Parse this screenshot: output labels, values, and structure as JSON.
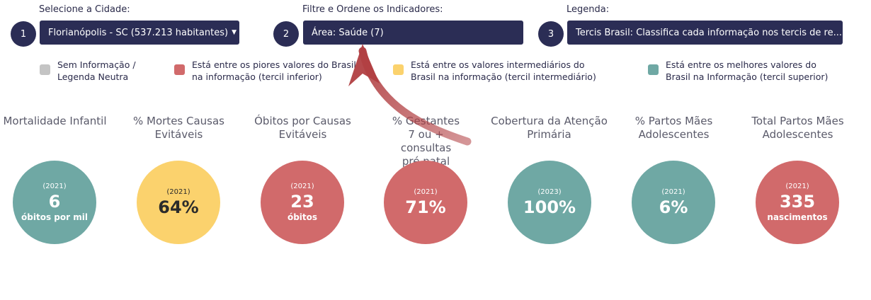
{
  "controls": {
    "city": {
      "label": "Selecione a Cidade:",
      "step": "1",
      "value": "Florianópolis - SC (537.213 habitantes)"
    },
    "indicators": {
      "label": "Filtre e Ordene os Indicadores:",
      "step": "2",
      "value": "Área: Saúde (7)"
    },
    "legend": {
      "label": "Legenda:",
      "step": "3",
      "value": "Tercis Brasil: Classifica cada informação nos tercis de re..."
    }
  },
  "legend_items": [
    {
      "text": "Sem Informação / Legenda Neutra",
      "color": "#c4c4c4"
    },
    {
      "text": "Está entre os piores valores do Brasil na informação (tercil inferior)",
      "color": "#d16a6b"
    },
    {
      "text": "Está entre os valores intermediários do Brasil na informação (tercil intermediário)",
      "color": "#fbd26d"
    },
    {
      "text": "Está entre os melhores valores do Brasil na Informação (tercil superior)",
      "color": "#6fa8a4"
    }
  ],
  "indicators": [
    {
      "title": "Mortalidade Infantil",
      "year": "(2021)",
      "value": "6",
      "unit": "óbitos por mil",
      "color": "#6fa8a4"
    },
    {
      "title": "% Mortes Causas Evitáveis",
      "year": "(2021)",
      "value": "64%",
      "unit": "",
      "color": "#fbd26d"
    },
    {
      "title": "Óbitos por Causas Evitáveis",
      "year": "(2021)",
      "value": "23",
      "unit": "óbitos",
      "color": "#d16a6b"
    },
    {
      "title": "% Gestantes 7 ou + consultas pré natal",
      "year": "(2021)",
      "value": "71%",
      "unit": "",
      "color": "#d16a6b"
    },
    {
      "title": "Cobertura da Atenção Primária",
      "year": "(2023)",
      "value": "100%",
      "unit": "",
      "color": "#6fa8a4"
    },
    {
      "title": "% Partos Mães Adolescentes",
      "year": "(2021)",
      "value": "6%",
      "unit": "",
      "color": "#6fa8a4"
    },
    {
      "title": "Total Partos Mães Adolescentes",
      "year": "(2021)",
      "value": "335",
      "unit": "nascimentos",
      "color": "#d16a6b"
    }
  ]
}
